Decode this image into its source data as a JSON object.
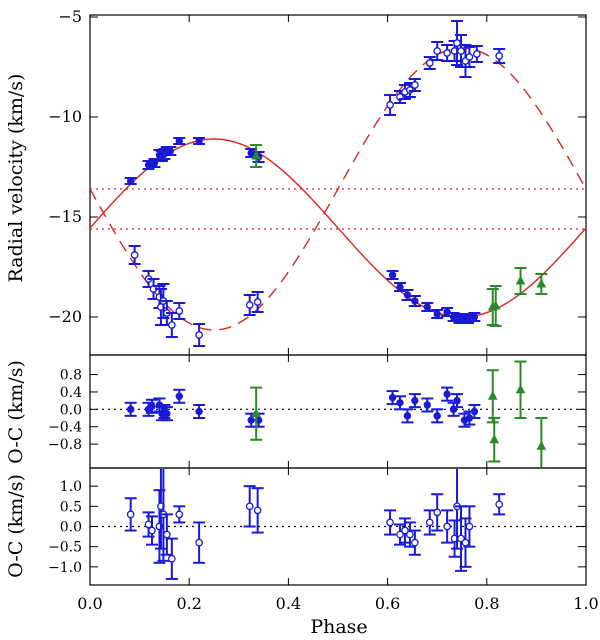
{
  "colors": {
    "primary": "#1a1ad6",
    "secondary": "#2a8a2a",
    "model": "#dd2222",
    "axis": "#000000"
  },
  "chart_data": [
    {
      "type": "scatter",
      "panel": "radial-velocity",
      "ylabel": "Radial velocity (km/s)",
      "xlim": [
        0.0,
        1.0
      ],
      "ylim": [
        -21.9,
        -4.9
      ],
      "yticks": [
        -5,
        -10,
        -15,
        -20
      ],
      "ytick_labels": [
        "−5",
        "−10",
        "−15",
        "−20"
      ],
      "gamma_lines": [
        -13.6,
        -15.6
      ],
      "model": {
        "primary_mean": -15.55,
        "primary_amp": 4.45,
        "secondary_mean": -13.6,
        "secondary_amp": 7.05
      },
      "series": [
        {
          "name": "primary (filled)",
          "color": "#1a1ad6",
          "marker": "filled-circle",
          "points": [
            [
              0.082,
              -13.2,
              0.15
            ],
            [
              0.118,
              -12.4,
              0.2
            ],
            [
              0.13,
              -12.3,
              0.2
            ],
            [
              0.14,
              -11.9,
              0.25
            ],
            [
              0.145,
              -11.95,
              0.25
            ],
            [
              0.15,
              -11.85,
              0.25
            ],
            [
              0.155,
              -11.7,
              0.2
            ],
            [
              0.162,
              -11.7,
              0.2
            ],
            [
              0.18,
              -11.2,
              0.15
            ],
            [
              0.22,
              -11.2,
              0.15
            ],
            [
              0.325,
              -11.8,
              0.2
            ],
            [
              0.34,
              -12.0,
              0.25
            ],
            [
              0.61,
              -17.9,
              0.2
            ],
            [
              0.625,
              -18.5,
              0.2
            ],
            [
              0.64,
              -18.9,
              0.25
            ],
            [
              0.655,
              -19.2,
              0.25
            ],
            [
              0.68,
              -19.5,
              0.2
            ],
            [
              0.7,
              -19.85,
              0.2
            ],
            [
              0.72,
              -19.75,
              0.2
            ],
            [
              0.733,
              -20.0,
              0.2
            ],
            [
              0.745,
              -20.1,
              0.2
            ],
            [
              0.755,
              -20.05,
              0.2
            ],
            [
              0.762,
              -20.1,
              0.2
            ],
            [
              0.775,
              -20.0,
              0.2
            ]
          ]
        },
        {
          "name": "secondary (open)",
          "color": "#1a1ad6",
          "marker": "open-circle",
          "points": [
            [
              0.09,
              -16.9,
              0.45
            ],
            [
              0.118,
              -18.1,
              0.4
            ],
            [
              0.128,
              -18.6,
              0.5
            ],
            [
              0.14,
              -19.0,
              0.55
            ],
            [
              0.143,
              -19.5,
              0.9
            ],
            [
              0.148,
              -19.2,
              0.85
            ],
            [
              0.155,
              -19.8,
              0.6
            ],
            [
              0.165,
              -20.4,
              0.6
            ],
            [
              0.18,
              -19.7,
              0.4
            ],
            [
              0.22,
              -20.9,
              0.55
            ],
            [
              0.322,
              -19.4,
              0.5
            ],
            [
              0.338,
              -19.25,
              0.5
            ],
            [
              0.605,
              -9.4,
              0.5
            ],
            [
              0.625,
              -9.0,
              0.3
            ],
            [
              0.635,
              -8.75,
              0.35
            ],
            [
              0.645,
              -8.65,
              0.35
            ],
            [
              0.655,
              -8.4,
              0.3
            ],
            [
              0.685,
              -7.3,
              0.3
            ],
            [
              0.7,
              -6.7,
              0.45
            ],
            [
              0.72,
              -6.8,
              0.4
            ],
            [
              0.735,
              -6.7,
              0.5
            ],
            [
              0.74,
              -6.3,
              1.1
            ],
            [
              0.748,
              -6.7,
              0.8
            ],
            [
              0.757,
              -7.2,
              0.8
            ],
            [
              0.765,
              -7.0,
              0.5
            ],
            [
              0.78,
              -6.85,
              0.4
            ],
            [
              0.825,
              -6.95,
              0.35
            ]
          ]
        },
        {
          "name": "third (triangles)",
          "color": "#2a8a2a",
          "marker": "filled-triangle",
          "points": [
            [
              0.335,
              -11.95,
              0.55
            ],
            [
              0.812,
              -19.5,
              0.9
            ],
            [
              0.818,
              -19.45,
              1.0
            ],
            [
              0.868,
              -18.2,
              0.65
            ],
            [
              0.91,
              -18.35,
              0.5
            ]
          ]
        }
      ]
    },
    {
      "type": "scatter",
      "panel": "residuals-primary",
      "ylabel": "O-C (km/s)",
      "ylim": [
        -1.35,
        1.25
      ],
      "yticks": [
        0.8,
        0.4,
        0.0,
        -0.4,
        -0.8
      ],
      "ytick_labels": [
        "0.8",
        "0.4",
        "0.0",
        "−0.4",
        "−0.8"
      ],
      "series": [
        {
          "name": "primary O-C",
          "color": "#1a1ad6",
          "marker": "filled-circle",
          "points": [
            [
              0.082,
              0.0,
              0.15
            ],
            [
              0.118,
              0.0,
              0.15
            ],
            [
              0.125,
              0.07,
              0.15
            ],
            [
              0.14,
              0.1,
              0.15
            ],
            [
              0.145,
              -0.1,
              0.15
            ],
            [
              0.15,
              -0.05,
              0.15
            ],
            [
              0.155,
              -0.1,
              0.15
            ],
            [
              0.18,
              0.3,
              0.15
            ],
            [
              0.22,
              -0.05,
              0.15
            ],
            [
              0.325,
              -0.25,
              0.15
            ],
            [
              0.34,
              -0.25,
              0.15
            ],
            [
              0.61,
              0.27,
              0.15
            ],
            [
              0.625,
              0.15,
              0.15
            ],
            [
              0.64,
              -0.15,
              0.15
            ],
            [
              0.655,
              0.2,
              0.15
            ],
            [
              0.68,
              0.1,
              0.15
            ],
            [
              0.7,
              -0.15,
              0.15
            ],
            [
              0.72,
              0.35,
              0.15
            ],
            [
              0.733,
              0.0,
              0.15
            ],
            [
              0.74,
              0.2,
              0.15
            ],
            [
              0.755,
              -0.25,
              0.15
            ],
            [
              0.765,
              -0.2,
              0.15
            ],
            [
              0.775,
              -0.05,
              0.15
            ]
          ]
        },
        {
          "name": "third O-C",
          "color": "#2a8a2a",
          "marker": "filled-triangle",
          "points": [
            [
              0.335,
              -0.1,
              0.6
            ],
            [
              0.812,
              0.3,
              0.6
            ],
            [
              0.815,
              -0.7,
              0.5
            ],
            [
              0.868,
              0.45,
              0.65
            ],
            [
              0.91,
              -0.85,
              0.65
            ]
          ]
        }
      ]
    },
    {
      "type": "scatter",
      "panel": "residuals-secondary",
      "ylabel": "O-C (km/s)",
      "xlabel": "Phase",
      "ylim": [
        -1.45,
        1.45
      ],
      "yticks": [
        1.0,
        0.5,
        0.0,
        -0.5,
        -1.0
      ],
      "ytick_labels": [
        "1.0",
        "0.5",
        "0.0",
        "−0.5",
        "−1.0"
      ],
      "xticks": [
        0.0,
        0.2,
        0.4,
        0.6,
        0.8,
        1.0
      ],
      "xtick_labels": [
        "0.0",
        "0.2",
        "0.4",
        "0.6",
        "0.8",
        "1.0"
      ],
      "series": [
        {
          "name": "secondary O-C",
          "color": "#1a1ad6",
          "marker": "open-circle",
          "points": [
            [
              0.082,
              0.3,
              0.4
            ],
            [
              0.118,
              0.05,
              0.3
            ],
            [
              0.125,
              -0.1,
              0.35
            ],
            [
              0.14,
              0.0,
              0.9
            ],
            [
              0.143,
              0.5,
              1.05
            ],
            [
              0.148,
              0.3,
              1.15
            ],
            [
              0.155,
              -0.2,
              0.5
            ],
            [
              0.165,
              -0.8,
              0.5
            ],
            [
              0.18,
              0.3,
              0.2
            ],
            [
              0.22,
              -0.4,
              0.5
            ],
            [
              0.322,
              0.5,
              0.5
            ],
            [
              0.338,
              0.4,
              0.55
            ],
            [
              0.605,
              0.1,
              0.3
            ],
            [
              0.625,
              -0.2,
              0.25
            ],
            [
              0.635,
              -0.1,
              0.3
            ],
            [
              0.645,
              -0.2,
              0.3
            ],
            [
              0.655,
              -0.4,
              0.3
            ],
            [
              0.685,
              0.1,
              0.3
            ],
            [
              0.7,
              0.35,
              0.45
            ],
            [
              0.72,
              0.0,
              0.4
            ],
            [
              0.735,
              -0.3,
              0.45
            ],
            [
              0.74,
              0.5,
              1.05
            ],
            [
              0.748,
              -0.3,
              0.8
            ],
            [
              0.757,
              -0.4,
              0.6
            ],
            [
              0.765,
              0.0,
              0.5
            ],
            [
              0.825,
              0.55,
              0.25
            ]
          ]
        }
      ]
    }
  ]
}
